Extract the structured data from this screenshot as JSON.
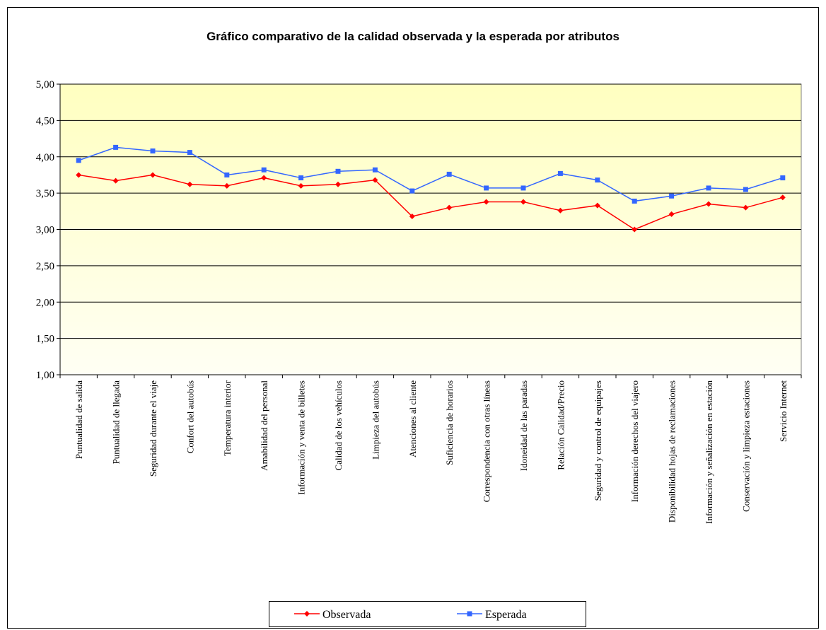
{
  "chart_data": {
    "type": "line",
    "title": "Gráfico comparativo de la calidad observada y la esperada por atributos",
    "categories": [
      "Puntualidad de salida",
      "Puntualidad de llegada",
      "Seguridad durante el viaje",
      "Confort del autobús",
      "Temperatura interior",
      "Amabilidad del personal",
      "Información y venta de billetes",
      "Calidad de los vehículos",
      "Limpieza del autobús",
      "Atenciones al cliente",
      "Suficiencia de horarios",
      "Correspondencia con otras líneas",
      "Idoneidad de las paradas",
      "Relación Calidad/Precio",
      "Seguridad y control de equipajes",
      "Información derechos del viajero",
      "Disponibilidad hojas de reclamaciones",
      "Información y señalización en estación",
      "Conservación y limpieza estaciones",
      "Servicio Internet"
    ],
    "series": [
      {
        "name": "Observada",
        "color": "#ff0000",
        "marker": "diamond",
        "values": [
          3.75,
          3.67,
          3.75,
          3.62,
          3.6,
          3.71,
          3.6,
          3.62,
          3.68,
          3.18,
          3.3,
          3.38,
          3.38,
          3.26,
          3.33,
          3.0,
          3.21,
          3.35,
          3.3,
          3.44
        ]
      },
      {
        "name": "Esperada",
        "color": "#3366ff",
        "marker": "square",
        "values": [
          3.95,
          4.13,
          4.08,
          4.06,
          3.75,
          3.82,
          3.71,
          3.8,
          3.82,
          3.53,
          3.76,
          3.57,
          3.57,
          3.77,
          3.68,
          3.39,
          3.46,
          3.57,
          3.55,
          3.71
        ]
      }
    ],
    "ylim": [
      1,
      5
    ],
    "yticks": [
      {
        "value": 1,
        "label": "1,00"
      },
      {
        "value": 1.5,
        "label": "1,50"
      },
      {
        "value": 2,
        "label": "2,00"
      },
      {
        "value": 2.5,
        "label": "2,50"
      },
      {
        "value": 3,
        "label": "3,00"
      },
      {
        "value": 3.5,
        "label": "3,50"
      },
      {
        "value": 4,
        "label": "4,00"
      },
      {
        "value": 4.5,
        "label": "4,50"
      },
      {
        "value": 5,
        "label": "5,00"
      }
    ],
    "grid": true,
    "legend": "bottom"
  }
}
